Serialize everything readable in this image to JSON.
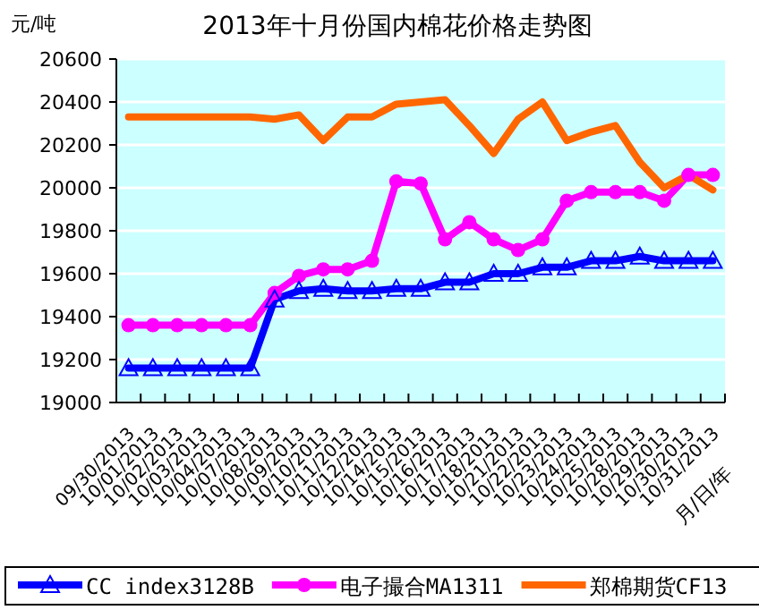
{
  "chart_data": {
    "type": "line",
    "title": "2013年十月份国内棉花价格走势图",
    "ylabel": "元/吨",
    "xlabel": "月/日/年",
    "categories": [
      "09/30/2013",
      "10/01/2013",
      "10/02/2013",
      "10/03/2013",
      "10/04/2013",
      "10/07/2013",
      "10/08/2013",
      "10/09/2013",
      "10/10/2013",
      "10/11/2013",
      "10/12/2013",
      "10/14/2013",
      "10/15/2013",
      "10/16/2013",
      "10/17/2013",
      "10/18/2013",
      "10/21/2013",
      "10/22/2013",
      "10/23/2013",
      "10/24/2013",
      "10/25/2013",
      "10/28/2013",
      "10/29/2013",
      "10/30/2013",
      "10/31/2013"
    ],
    "series": [
      {
        "name": "CC index3128B",
        "color": "#0000ff",
        "marker": "triangle",
        "values": [
          19160,
          19160,
          19160,
          19160,
          19160,
          19160,
          19480,
          19520,
          19530,
          19520,
          19520,
          19530,
          19530,
          19560,
          19560,
          19600,
          19600,
          19630,
          19630,
          19660,
          19660,
          19680,
          19660,
          19660,
          19660
        ]
      },
      {
        "name": "电子撮合MA1311",
        "color": "#ff00ff",
        "marker": "circle",
        "values": [
          19360,
          19360,
          19360,
          19360,
          19360,
          19360,
          19510,
          19590,
          19620,
          19620,
          19660,
          20030,
          20020,
          19760,
          19840,
          19760,
          19710,
          19760,
          19940,
          19980,
          19980,
          19980,
          19940,
          20060,
          20060
        ]
      },
      {
        "name": "郑棉期货CF13",
        "color": "#ff6600",
        "marker": "none",
        "values": [
          20330,
          20330,
          20330,
          20330,
          20330,
          20330,
          20320,
          20340,
          20220,
          20330,
          20330,
          20390,
          20400,
          20410,
          20290,
          20160,
          20320,
          20400,
          20220,
          20260,
          20290,
          20120,
          20000,
          20060,
          19990
        ]
      }
    ],
    "ylim": [
      19000,
      20600
    ],
    "yticks": [
      19000,
      19200,
      19400,
      19600,
      19800,
      20000,
      20200,
      20400,
      20600
    ],
    "grid": "y",
    "legend": "bottom"
  }
}
